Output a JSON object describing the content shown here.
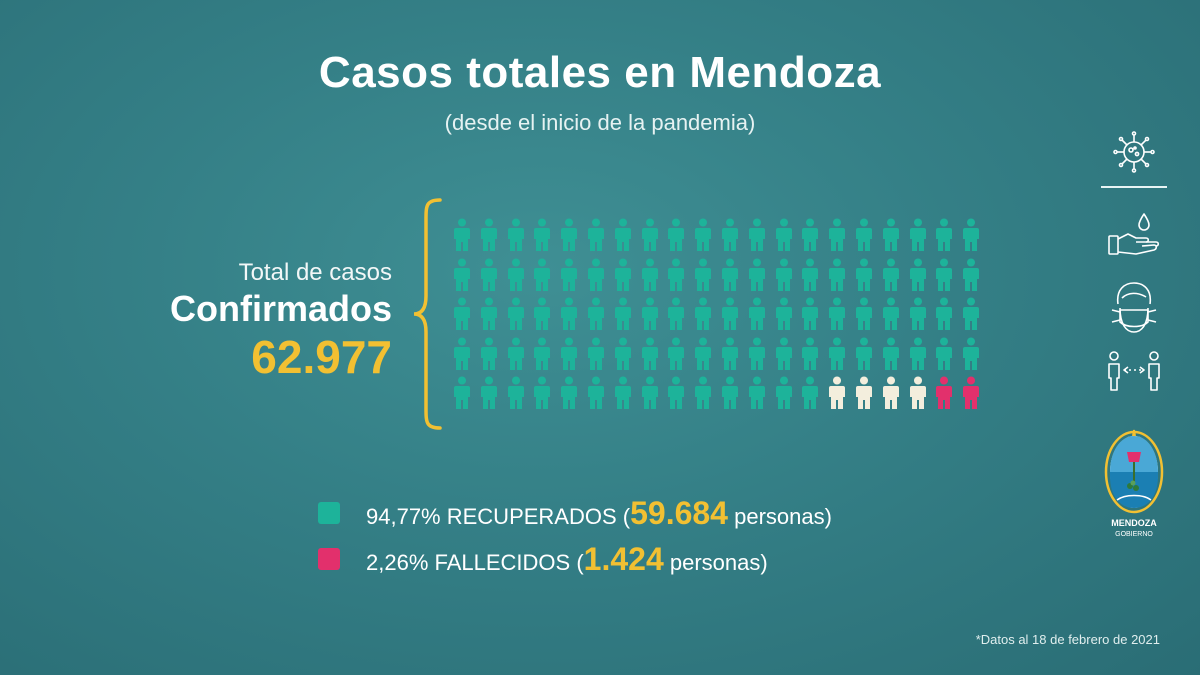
{
  "header": {
    "title": "Casos totales en Mendoza",
    "subtitle": "(desde el inicio de la pandemia)"
  },
  "summary": {
    "label_total": "Total de casos",
    "label_confirmed": "Confirmados",
    "total_value": "62.977"
  },
  "pictogram": {
    "rows": 5,
    "columns": 20,
    "counts": {
      "recovered": 94,
      "other": 4,
      "deceased": 2
    },
    "colors": {
      "recovered": "#1db39a",
      "other": "#f3eedd",
      "deceased": "#e2306c"
    }
  },
  "legend": {
    "recovered": {
      "color": "#1db39a",
      "prefix": "94,77% RECUPERADOS (",
      "value": "59.684",
      "suffix": "personas)"
    },
    "deceased": {
      "color": "#e2306c",
      "prefix": "2,26% FALLECIDOS (",
      "value": "1.424",
      "suffix": "personas)"
    }
  },
  "footnote": "*Datos al 18 de febrero de 2021",
  "sidebar": {
    "icons": [
      "virus-icon",
      "hand-washing-icon",
      "face-mask-icon",
      "social-distance-icon"
    ],
    "logo": {
      "line1": "MENDOZA",
      "line2": "GOBIERNO"
    }
  }
}
